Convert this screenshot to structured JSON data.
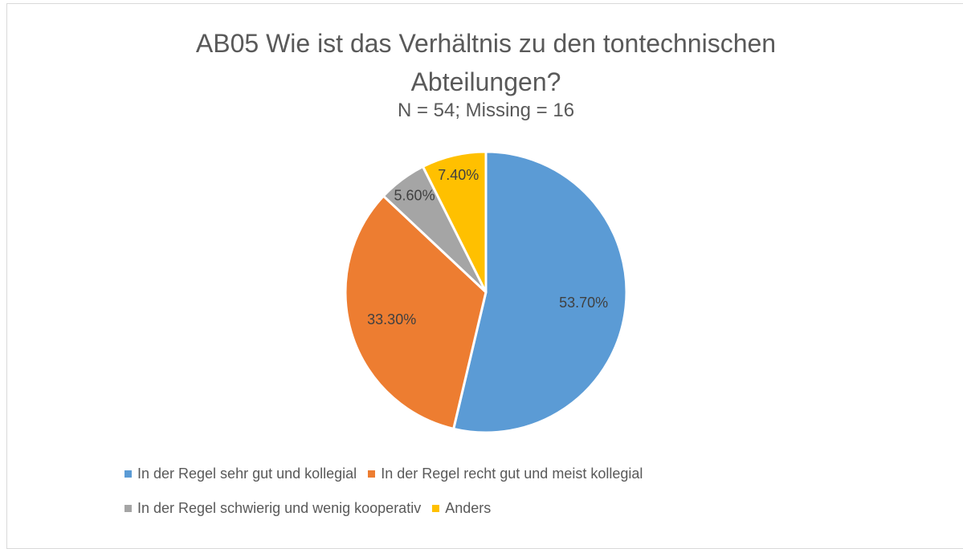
{
  "chart_data": {
    "type": "pie",
    "title": "AB05 Wie ist das Verhältnis zu den tontechnischen Abteilungen?",
    "subtitle": "N = 54; Missing = 16",
    "categories": [
      "In der Regel sehr gut und kollegial",
      "In der Regel recht gut und meist kollegial",
      "In der Regel schwierig und wenig kooperativ",
      "Anders"
    ],
    "values": [
      53.7,
      33.3,
      5.6,
      7.4
    ],
    "value_labels": [
      "53.70%",
      "33.30%",
      "5.60%",
      "7.40%"
    ],
    "colors": [
      "#5b9bd5",
      "#ed7d31",
      "#a5a5a5",
      "#ffc000"
    ],
    "legend": "bottom"
  }
}
